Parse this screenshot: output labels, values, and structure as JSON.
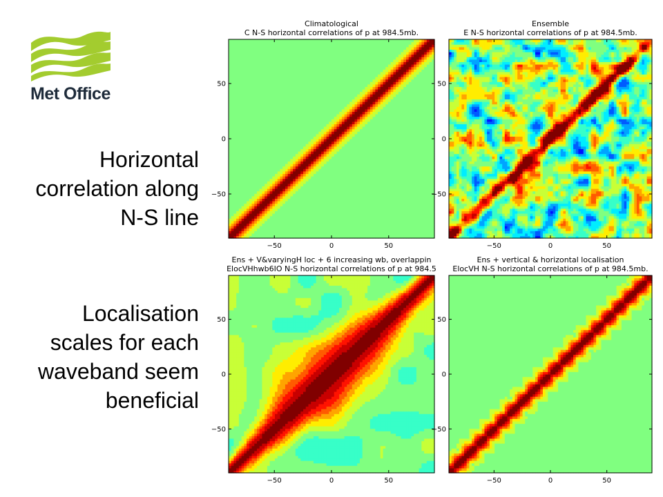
{
  "brand": {
    "name": "Met Office",
    "colors": {
      "wave": "#a3cc2f",
      "text": "#1e2b3a"
    }
  },
  "captions": {
    "horizontal": [
      "Horizontal",
      "correlation along",
      "N-S line"
    ],
    "localisation": [
      "Localisation",
      "scales for each",
      "waveband seem",
      "beneficial"
    ]
  },
  "chart_data": [
    {
      "type": "heatmap",
      "title_lines": [
        "Climatological",
        "C N-S horizontal correlations of p at 984.5mb."
      ],
      "x_ticks": [
        -50,
        0,
        50
      ],
      "y_ticks": [
        50,
        0,
        -50
      ],
      "xlim": [
        -90,
        90
      ],
      "ylim": [
        -90,
        90
      ],
      "diagonal": "narrow smooth band",
      "background": "uniform near zero"
    },
    {
      "type": "heatmap",
      "title_lines": [
        "Ensemble",
        "E N-S horizontal correlations of p at 984.5mb."
      ],
      "x_ticks": [
        -50,
        0,
        50
      ],
      "y_ticks": [
        50,
        0,
        -50
      ],
      "xlim": [
        -90,
        90
      ],
      "ylim": [
        -90,
        90
      ],
      "diagonal": "noisy band",
      "background": "noisy positive and negative spurious correlations"
    },
    {
      "type": "heatmap",
      "title_lines": [
        "Ens + V&varyingH loc + 6 increasing wb, overlappin",
        "ElocVHhwb6IO N-S horizontal correlations of p at 984.5"
      ],
      "x_ticks": [
        -50,
        0,
        50
      ],
      "y_ticks": [
        50,
        0,
        -50
      ],
      "xlim": [
        -90,
        90
      ],
      "ylim": [
        -90,
        90
      ],
      "diagonal": "broad band with smooth lobes",
      "background": "mostly near zero, some weak structure"
    },
    {
      "type": "heatmap",
      "title_lines": [
        "Ens + vertical & horizontal localisation",
        "ElocVH N-S horizontal correlations of p at 984.5mb."
      ],
      "x_ticks": [
        -50,
        0,
        50
      ],
      "y_ticks": [
        50,
        0,
        -50
      ],
      "xlim": [
        -90,
        90
      ],
      "ylim": [
        -90,
        90
      ],
      "diagonal": "narrow wavy band",
      "background": "uniform near zero"
    }
  ]
}
